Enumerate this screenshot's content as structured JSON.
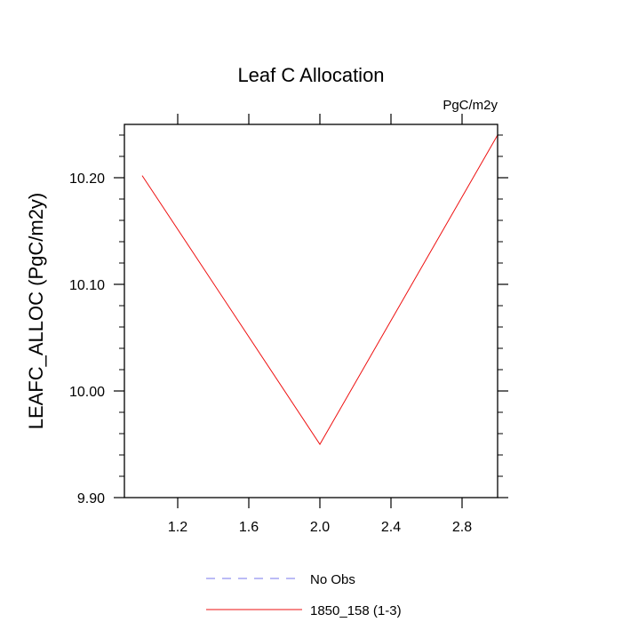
{
  "chart_data": {
    "type": "line",
    "title": "Leaf C Allocation",
    "units_label": "PgC/m2y",
    "ylabel": "LEAFC_ALLOC  (PgC/m2y)",
    "xlabel": "",
    "xlim": [
      0.9,
      3.0
    ],
    "ylim": [
      9.9,
      10.25
    ],
    "xticks": [
      1.2,
      1.6,
      2.0,
      2.4,
      2.8
    ],
    "xtick_labels": [
      "1.2",
      "1.6",
      "2.0",
      "2.4",
      "2.8"
    ],
    "yticks": [
      9.9,
      10.0,
      10.1,
      10.2
    ],
    "ytick_labels": [
      "9.90",
      "10.00",
      "10.10",
      "10.20"
    ],
    "grid": false,
    "legend_position": "bottom",
    "series": [
      {
        "name": "No Obs",
        "color": "#7777ee",
        "dash": true,
        "x": [],
        "y": []
      },
      {
        "name": "1850_158 (1-3)",
        "color": "#ee1111",
        "dash": false,
        "x": [
          1.0,
          2.0,
          3.0
        ],
        "y": [
          10.202,
          9.95,
          10.24
        ]
      }
    ]
  }
}
